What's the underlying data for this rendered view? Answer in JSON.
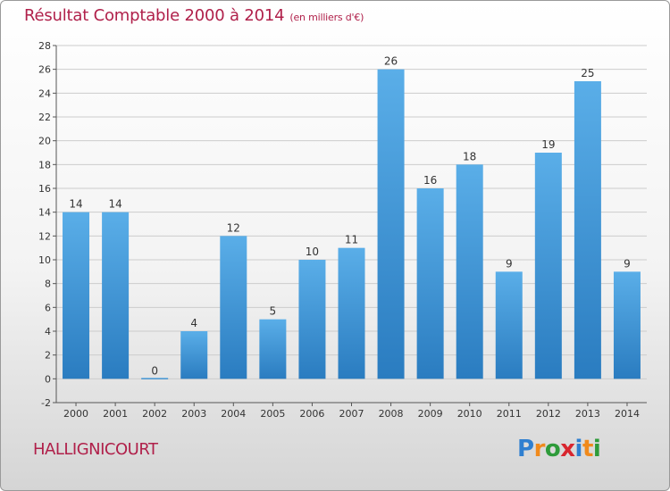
{
  "header": {
    "title": "Résultat Comptable 2000 à 2014",
    "subtitle": "(en milliers d'€)"
  },
  "commune": "HALLIGNICOURT",
  "brand": {
    "letters": [
      "P",
      "r",
      "o",
      "x",
      "i",
      "t",
      "i"
    ],
    "colors": [
      "#2f7fd0",
      "#f08a1c",
      "#2e9b3a",
      "#d8262f",
      "#2f7fd0",
      "#f08a1c",
      "#2e9b3a"
    ]
  },
  "colors": {
    "bar_light": "#5aaee8",
    "bar_dark": "#2a7cc0",
    "title": "#b0204a",
    "grid": "#cccccc"
  },
  "chart_data": {
    "type": "bar",
    "categories": [
      "2000",
      "2001",
      "2002",
      "2003",
      "2004",
      "2005",
      "2006",
      "2007",
      "2008",
      "2009",
      "2010",
      "2011",
      "2012",
      "2013",
      "2014"
    ],
    "values": [
      14,
      14,
      0,
      4,
      12,
      5,
      10,
      11,
      26,
      16,
      18,
      9,
      19,
      25,
      9
    ],
    "ylim": [
      -2,
      28
    ],
    "yticks": [
      -2,
      0,
      2,
      4,
      6,
      8,
      10,
      12,
      14,
      16,
      18,
      20,
      22,
      24,
      26,
      28
    ],
    "grid": "horizontal",
    "data_labels": true
  }
}
